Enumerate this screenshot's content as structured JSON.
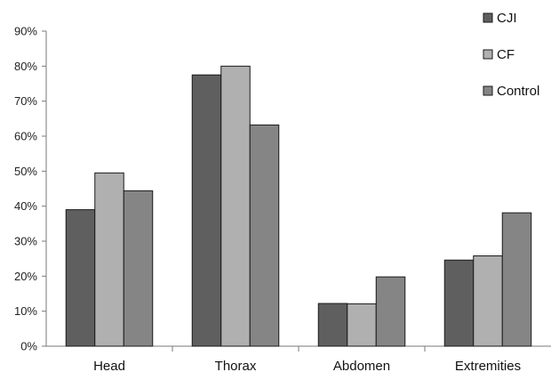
{
  "chart_data": {
    "type": "bar",
    "categories": [
      "Head",
      "Thorax",
      "Abdomen",
      "Extremities"
    ],
    "series": [
      {
        "name": "CJI",
        "color": "#5f5f5f",
        "values": [
          39,
          77.5,
          12.2,
          24.6
        ]
      },
      {
        "name": "CF",
        "color": "#b0b0b0",
        "values": [
          49.5,
          80,
          12.1,
          25.8
        ]
      },
      {
        "name": "Control",
        "color": "#858585",
        "values": [
          44.4,
          63.2,
          19.8,
          38.1
        ]
      }
    ],
    "ylim": [
      0,
      90
    ],
    "ytick_step": 10,
    "ytick_labels": [
      "0%",
      "10%",
      "20%",
      "30%",
      "40%",
      "50%",
      "60%",
      "70%",
      "80%",
      "90%"
    ],
    "title": "",
    "xlabel": "",
    "ylabel": "",
    "grid": false,
    "legend_position": "top-right"
  }
}
